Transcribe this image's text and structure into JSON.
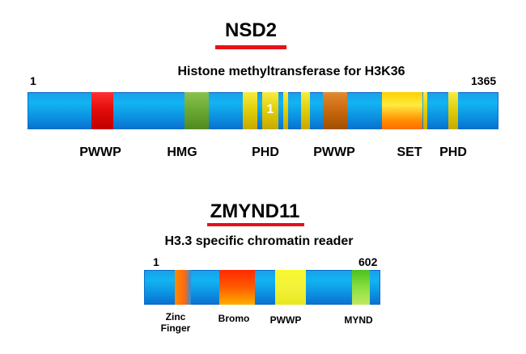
{
  "nsd2": {
    "title": "NSD2",
    "subtitle": "Histone methyltransferase for H3K36",
    "start": "1",
    "end": "1365",
    "phd_inner_number": "1",
    "labels": {
      "pwwp1": "PWWP",
      "hmg": "HMG",
      "phd1": "PHD",
      "pwwp2": "PWWP",
      "set": "SET",
      "phd2": "PHD"
    },
    "colors": {
      "backbone": "#0b8fe0",
      "pwwp1": "#e01010",
      "hmg": "#6aa832",
      "phd": "#e8d40a",
      "pwwp2": "#c8680e",
      "set": "#ff8a00"
    }
  },
  "zmynd11": {
    "title": "ZMYND11",
    "subtitle": "H3.3 specific chromatin  reader",
    "start": "1",
    "end": "602",
    "labels": {
      "zinc_line1": "Zinc",
      "zinc_line2": "Finger",
      "bromo": "Bromo",
      "pwwp": "PWWP",
      "mynd": "MYND"
    },
    "colors": {
      "backbone": "#0b8fe0",
      "zinc": "#ff7a00",
      "bromo": "#ff5500",
      "pwwp": "#f2f23a",
      "mynd": "#6ad42a"
    }
  }
}
